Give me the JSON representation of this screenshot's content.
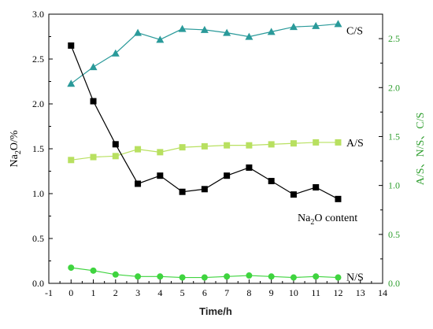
{
  "chart_data": {
    "type": "line",
    "xlabel": "Time/h",
    "ylabel_left": {
      "main": "Na",
      "sub": "2",
      "rest": "O/%"
    },
    "ylabel_right": "A/S、N/S、C/S",
    "xlim": [
      -1,
      14
    ],
    "ylim_left": [
      0,
      3.0
    ],
    "ylim_right": [
      0,
      2.75
    ],
    "x_ticks": [
      -1,
      0,
      1,
      2,
      3,
      4,
      5,
      6,
      7,
      8,
      9,
      10,
      11,
      12,
      13,
      14
    ],
    "y_ticks_left": [
      "0.0",
      "0.5",
      "1.0",
      "1.5",
      "2.0",
      "2.5",
      "3.0"
    ],
    "y_ticks_right": [
      "0.0",
      "0.5",
      "1.0",
      "1.5",
      "2.0",
      "2.5"
    ],
    "grid": false,
    "x": [
      0,
      1,
      2,
      3,
      4,
      5,
      6,
      7,
      8,
      9,
      10,
      11,
      12
    ],
    "series": [
      {
        "name": "C/S",
        "axis": "right",
        "color": "#2a9a9a",
        "marker": "triangle",
        "values": [
          2.04,
          2.21,
          2.35,
          2.56,
          2.49,
          2.6,
          2.59,
          2.56,
          2.52,
          2.57,
          2.62,
          2.63,
          2.65
        ]
      },
      {
        "name": "A/S",
        "axis": "right",
        "color": "#b8e060",
        "marker": "square",
        "values": [
          1.26,
          1.29,
          1.3,
          1.37,
          1.34,
          1.39,
          1.4,
          1.41,
          1.41,
          1.42,
          1.43,
          1.44,
          1.44
        ]
      },
      {
        "name": "Na2O content",
        "label": {
          "main": "Na",
          "sub": "2",
          "rest": "O content"
        },
        "axis": "left",
        "color": "#000000",
        "marker": "square",
        "values": [
          2.65,
          2.03,
          1.55,
          1.11,
          1.2,
          1.02,
          1.05,
          1.2,
          1.29,
          1.14,
          0.99,
          1.07,
          0.94
        ]
      },
      {
        "name": "N/S",
        "axis": "right",
        "color": "#3fd43f",
        "marker": "circle",
        "values": [
          0.16,
          0.13,
          0.09,
          0.07,
          0.07,
          0.06,
          0.06,
          0.07,
          0.08,
          0.07,
          0.06,
          0.07,
          0.06
        ]
      }
    ]
  }
}
